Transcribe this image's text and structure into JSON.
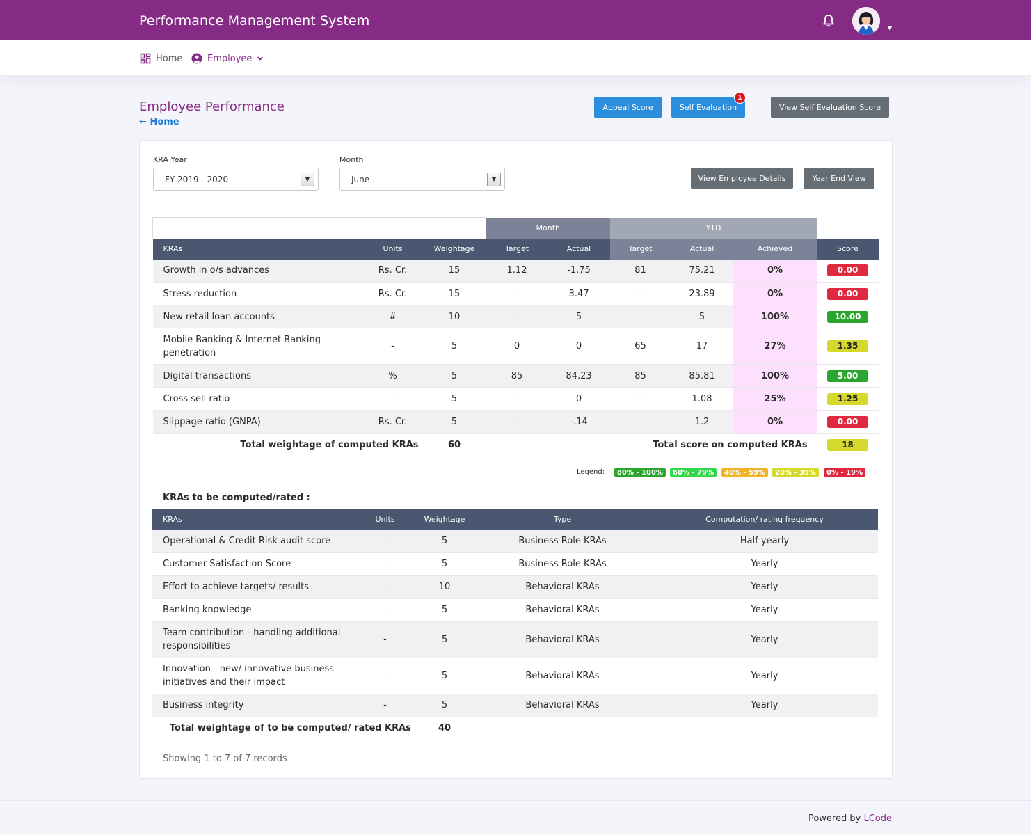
{
  "app": {
    "title": "Performance Management System"
  },
  "nav": {
    "home": "Home",
    "employee": "Employee"
  },
  "page": {
    "title": "Employee Performance",
    "back": "Home"
  },
  "actions": {
    "appeal": "Appeal Score",
    "self_eval": "Self Evaluation",
    "self_eval_badge": "1",
    "view_self_eval": "View Self Evaluation Score",
    "view_emp": "View Employee Details",
    "year_end": "Year End View"
  },
  "filters": {
    "year_label": "KRA Year",
    "year_value": "FY 2019 - 2020",
    "month_label": "Month",
    "month_value": "June"
  },
  "kra_table": {
    "group_headers": {
      "month": "Month",
      "ytd": "YTD"
    },
    "headers": [
      "KRAs",
      "Units",
      "Weightage",
      "Target",
      "Actual",
      "Target",
      "Actual",
      "Achieved",
      "Score"
    ],
    "rows": [
      {
        "kra": "Growth in o/s advances",
        "units": "Rs. Cr.",
        "weightage": "15",
        "m_target": "1.12",
        "m_actual": "-1.75",
        "y_target": "81",
        "y_actual": "75.21",
        "achieved": "0%",
        "score": "0.00",
        "level": "red"
      },
      {
        "kra": "Stress reduction",
        "units": "Rs. Cr.",
        "weightage": "15",
        "m_target": "-",
        "m_actual": "3.47",
        "y_target": "-",
        "y_actual": "23.89",
        "achieved": "0%",
        "score": "0.00",
        "level": "red"
      },
      {
        "kra": "New retail loan accounts",
        "units": "#",
        "weightage": "10",
        "m_target": "-",
        "m_actual": "5",
        "y_target": "-",
        "y_actual": "5",
        "achieved": "100%",
        "score": "10.00",
        "level": "green"
      },
      {
        "kra": "Mobile Banking & Internet Banking penetration",
        "units": "-",
        "weightage": "5",
        "m_target": "0",
        "m_actual": "0",
        "y_target": "65",
        "y_actual": "17",
        "achieved": "27%",
        "score": "1.35",
        "level": "yellow"
      },
      {
        "kra": "Digital transactions",
        "units": "%",
        "weightage": "5",
        "m_target": "85",
        "m_actual": "84.23",
        "y_target": "85",
        "y_actual": "85.81",
        "achieved": "100%",
        "score": "5.00",
        "level": "green"
      },
      {
        "kra": "Cross sell ratio",
        "units": "-",
        "weightage": "5",
        "m_target": "-",
        "m_actual": "0",
        "y_target": "-",
        "y_actual": "1.08",
        "achieved": "25%",
        "score": "1.25",
        "level": "yellow"
      },
      {
        "kra": "Slippage ratio (GNPA)",
        "units": "Rs. Cr.",
        "weightage": "5",
        "m_target": "-",
        "m_actual": "-.14",
        "y_target": "-",
        "y_actual": "1.2",
        "achieved": "0%",
        "score": "0.00",
        "level": "red"
      }
    ],
    "total_weight_label": "Total weightage of computed KRAs",
    "total_weight": "60",
    "total_score_label": "Total score on computed KRAs",
    "total_score": "18"
  },
  "legend": {
    "label": "Legend:",
    "items": [
      {
        "text": "80% - 100%",
        "color": "#2aa52e"
      },
      {
        "text": "60% - 79%",
        "color": "#33d84a"
      },
      {
        "text": "40% - 59%",
        "color": "#f0b323"
      },
      {
        "text": "20% - 39%",
        "color": "#d5d92b"
      },
      {
        "text": "0% - 19%",
        "color": "#e0283f"
      }
    ]
  },
  "rated": {
    "title": "KRAs to be computed/rated :",
    "headers": [
      "KRAs",
      "Units",
      "Weightage",
      "Type",
      "Computation/ rating frequency"
    ],
    "rows": [
      {
        "kra": "Operational & Credit Risk audit score",
        "units": "-",
        "weightage": "5",
        "type": "Business Role KRAs",
        "freq": "Half yearly"
      },
      {
        "kra": "Customer Satisfaction Score",
        "units": "-",
        "weightage": "5",
        "type": "Business Role KRAs",
        "freq": "Yearly"
      },
      {
        "kra": "Effort to achieve targets/ results",
        "units": "-",
        "weightage": "10",
        "type": "Behavioral KRAs",
        "freq": "Yearly"
      },
      {
        "kra": "Banking knowledge",
        "units": "-",
        "weightage": "5",
        "type": "Behavioral KRAs",
        "freq": "Yearly"
      },
      {
        "kra": "Team contribution - handling additional responsibilities",
        "units": "-",
        "weightage": "5",
        "type": "Behavioral KRAs",
        "freq": "Yearly"
      },
      {
        "kra": "Innovation - new/ innovative business initiatives and their impact",
        "units": "-",
        "weightage": "5",
        "type": "Behavioral KRAs",
        "freq": "Yearly"
      },
      {
        "kra": "Business integrity",
        "units": "-",
        "weightage": "5",
        "type": "Behavioral KRAs",
        "freq": "Yearly"
      }
    ],
    "total_label": "Total weightage of to be computed/ rated KRAs",
    "total": "40",
    "records": "Showing 1 to 7 of 7 records"
  },
  "footer": {
    "powered": "Powered by",
    "brand": "LCode"
  }
}
